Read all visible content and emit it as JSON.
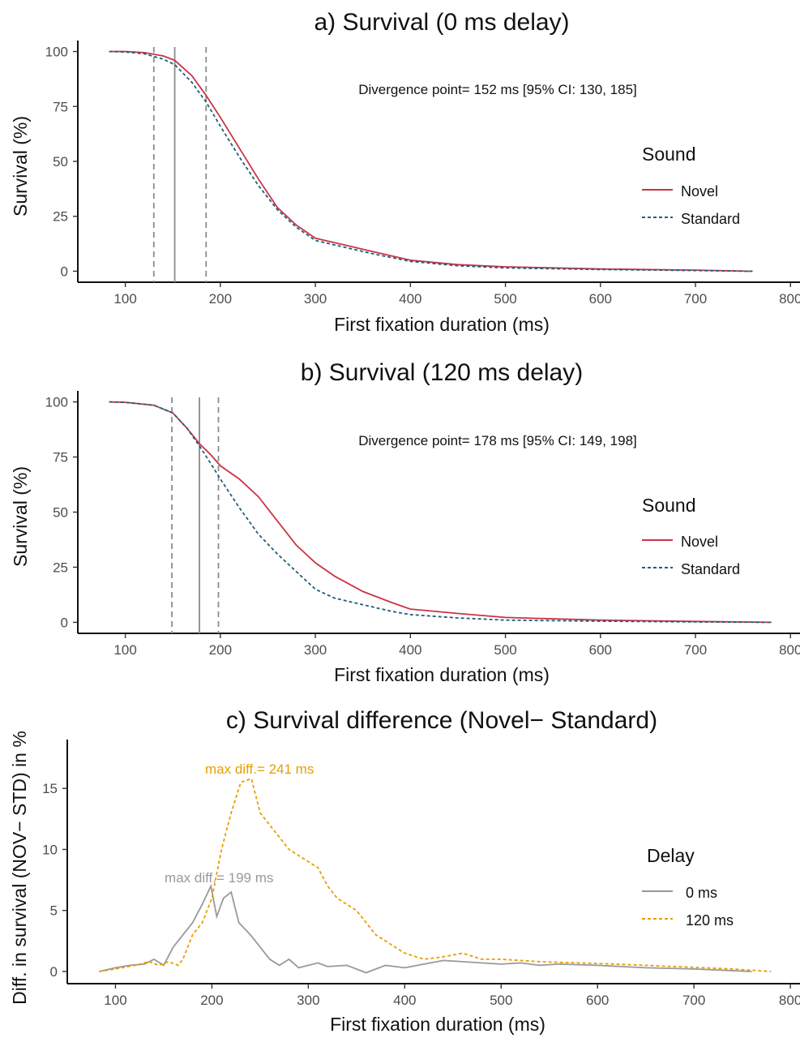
{
  "chart_data": [
    {
      "type": "line",
      "title": "a) Survival (0 ms delay)",
      "xlabel": "First fixation duration (ms)",
      "ylabel": "Survival (%)",
      "xlim": [
        50,
        810
      ],
      "ylim": [
        -5,
        105
      ],
      "xticks": [
        "100",
        "200",
        "300",
        "400",
        "500",
        "600",
        "700",
        "800"
      ],
      "yticks": [
        "0",
        "25",
        "50",
        "75",
        "100"
      ],
      "grid": false,
      "annotation": "Divergence point= 152 ms [95% CI: 130, 185]",
      "vlines": {
        "point": 152,
        "ci": [
          130,
          185
        ]
      },
      "legend": {
        "title": "Sound",
        "position": "right",
        "entries": [
          "Novel",
          "Standard"
        ]
      },
      "series": [
        {
          "name": "Novel",
          "color": "#cc3344",
          "dash": "solid",
          "x": [
            83,
            100,
            120,
            140,
            152,
            170,
            185,
            200,
            220,
            240,
            260,
            280,
            300,
            330,
            360,
            400,
            450,
            500,
            600,
            700,
            760
          ],
          "y": [
            100,
            100,
            99.5,
            98,
            96,
            89,
            80,
            70,
            56,
            42,
            29,
            21,
            15,
            12,
            9,
            5,
            3,
            2,
            1,
            0.5,
            0
          ]
        },
        {
          "name": "Standard",
          "color": "#1f5f7a",
          "dash": "dashed",
          "x": [
            83,
            100,
            120,
            140,
            152,
            170,
            185,
            200,
            220,
            240,
            260,
            280,
            300,
            330,
            360,
            400,
            450,
            500,
            600,
            700,
            760
          ],
          "y": [
            100,
            99.8,
            99,
            96.5,
            94,
            86,
            77,
            66,
            52,
            39,
            28,
            20,
            14,
            11,
            8,
            4.5,
            2.5,
            1.5,
            0.8,
            0.3,
            0
          ]
        }
      ]
    },
    {
      "type": "line",
      "title": "b) Survival (120 ms delay)",
      "xlabel": "First fixation duration (ms)",
      "ylabel": "Survival (%)",
      "xlim": [
        50,
        810
      ],
      "ylim": [
        -5,
        105
      ],
      "xticks": [
        "100",
        "200",
        "300",
        "400",
        "500",
        "600",
        "700",
        "800"
      ],
      "yticks": [
        "0",
        "25",
        "50",
        "75",
        "100"
      ],
      "grid": false,
      "annotation": "Divergence point= 178 ms [95% CI: 149, 198]",
      "vlines": {
        "point": 178,
        "ci": [
          149,
          198
        ]
      },
      "legend": {
        "title": "Sound",
        "position": "right",
        "entries": [
          "Novel",
          "Standard"
        ]
      },
      "series": [
        {
          "name": "Novel",
          "color": "#cc3344",
          "dash": "solid",
          "x": [
            83,
            100,
            130,
            150,
            165,
            178,
            190,
            200,
            220,
            240,
            260,
            280,
            300,
            320,
            350,
            380,
            400,
            450,
            500,
            600,
            700,
            780
          ],
          "y": [
            100,
            99.8,
            98.5,
            95,
            88,
            81,
            76,
            71,
            65,
            57,
            46,
            35,
            27,
            21,
            14,
            9,
            6,
            4,
            2.2,
            1,
            0.4,
            0
          ]
        },
        {
          "name": "Standard",
          "color": "#1f5f7a",
          "dash": "dashed",
          "x": [
            83,
            100,
            130,
            150,
            165,
            178,
            190,
            200,
            220,
            240,
            260,
            280,
            300,
            320,
            350,
            380,
            400,
            450,
            500,
            600,
            700,
            780
          ],
          "y": [
            100,
            99.8,
            98.5,
            95,
            88,
            80,
            72,
            65,
            52,
            40,
            31,
            23,
            15,
            11,
            8,
            5,
            3.5,
            2,
            1,
            0.5,
            0.2,
            0
          ]
        }
      ]
    },
    {
      "type": "line",
      "title": "c) Survival difference (Novel− Standard)",
      "xlabel": "First fixation duration (ms)",
      "ylabel": "Diff. in survival (NOV− STD) in %",
      "xlim": [
        50,
        810
      ],
      "ylim": [
        -1,
        19
      ],
      "xticks": [
        "100",
        "200",
        "300",
        "400",
        "500",
        "600",
        "700",
        "800"
      ],
      "yticks": [
        "0",
        "5",
        "10",
        "15"
      ],
      "grid": false,
      "legend": {
        "title": "Delay",
        "position": "right",
        "entries": [
          "0 ms",
          "120 ms"
        ]
      },
      "annotations": [
        {
          "text": "max diff.= 241 ms",
          "x": 241,
          "y": 16.2,
          "color": "#e69f00"
        },
        {
          "text": "max diff.= 199 ms",
          "x": 199,
          "y": 7.3,
          "color": "#999999"
        }
      ],
      "series": [
        {
          "name": "0 ms",
          "color": "#999999",
          "dash": "solid",
          "x": [
            83,
            100,
            115,
            130,
            140,
            150,
            160,
            170,
            180,
            190,
            199,
            205,
            212,
            220,
            228,
            240,
            250,
            260,
            270,
            280,
            290,
            300,
            310,
            320,
            340,
            360,
            380,
            400,
            420,
            440,
            460,
            480,
            500,
            520,
            540,
            560,
            600,
            650,
            700,
            760
          ],
          "y": [
            0,
            0.3,
            0.5,
            0.6,
            1.0,
            0.5,
            2.0,
            3.0,
            4.0,
            5.5,
            7.0,
            4.5,
            6.0,
            6.5,
            4.0,
            3.0,
            2.0,
            1.0,
            0.5,
            1.0,
            0.3,
            0.5,
            0.7,
            0.4,
            0.5,
            -0.1,
            0.5,
            0.3,
            0.6,
            0.9,
            0.8,
            0.7,
            0.6,
            0.7,
            0.5,
            0.6,
            0.5,
            0.3,
            0.2,
            0
          ]
        },
        {
          "name": "120 ms",
          "color": "#e69f00",
          "dash": "dashed",
          "x": [
            83,
            100,
            120,
            135,
            145,
            155,
            165,
            170,
            180,
            190,
            200,
            210,
            220,
            230,
            241,
            250,
            260,
            270,
            280,
            290,
            300,
            310,
            320,
            330,
            340,
            350,
            360,
            370,
            380,
            400,
            420,
            440,
            460,
            480,
            500,
            540,
            580,
            620,
            680,
            740,
            780
          ],
          "y": [
            0,
            0.2,
            0.5,
            0.8,
            0.5,
            0.8,
            0.5,
            1.0,
            3.0,
            4.0,
            6.0,
            10.0,
            13.0,
            15.5,
            15.8,
            13.0,
            12.0,
            11.0,
            10.0,
            9.5,
            9.0,
            8.5,
            7.0,
            6.0,
            5.5,
            5.0,
            4.0,
            3.0,
            2.5,
            1.5,
            1.0,
            1.2,
            1.5,
            1.0,
            1.0,
            0.8,
            0.7,
            0.6,
            0.4,
            0.2,
            0
          ]
        }
      ]
    }
  ]
}
